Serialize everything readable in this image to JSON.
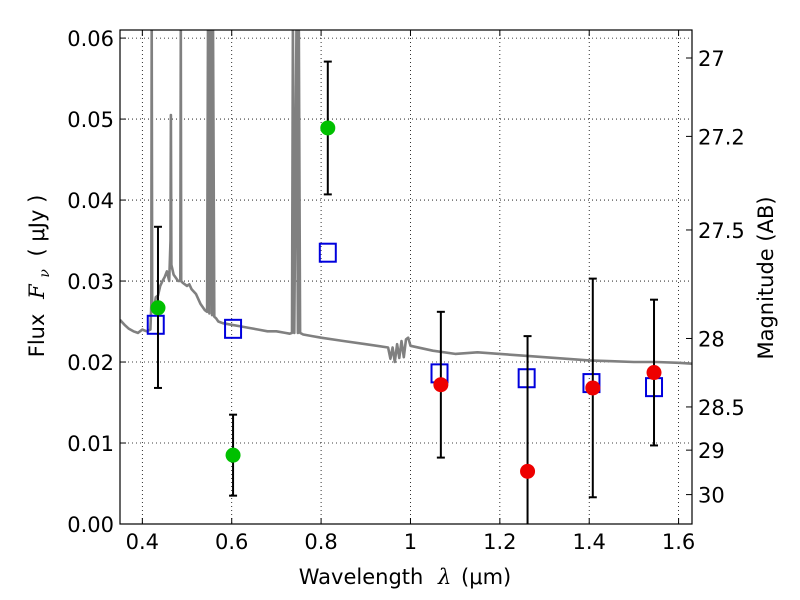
{
  "chart_data": {
    "type": "scatter",
    "xlabel": {
      "prefix": "Wavelength",
      "symbol": "λ",
      "unit": "(μm)"
    },
    "ylabel": {
      "prefix": "Flux",
      "symbol": "F",
      "subscript": "ν",
      "unit": "( μJy )"
    },
    "y2label": "Magnitude (AB)",
    "xlim": [
      0.35,
      1.63
    ],
    "ylim": [
      0.0,
      0.061
    ],
    "grid": true,
    "x_ticks": [
      {
        "value": 0.4,
        "label": "0.4"
      },
      {
        "value": 0.6,
        "label": "0.6"
      },
      {
        "value": 0.8,
        "label": "0.8"
      },
      {
        "value": 1.0,
        "label": "1"
      },
      {
        "value": 1.2,
        "label": "1.2"
      },
      {
        "value": 1.4,
        "label": "1.4"
      },
      {
        "value": 1.6,
        "label": "1.6"
      }
    ],
    "y_ticks": [
      {
        "value": 0.0,
        "label": "0.00"
      },
      {
        "value": 0.01,
        "label": "0.01"
      },
      {
        "value": 0.02,
        "label": "0.02"
      },
      {
        "value": 0.03,
        "label": "0.03"
      },
      {
        "value": 0.04,
        "label": "0.04"
      },
      {
        "value": 0.05,
        "label": "0.05"
      },
      {
        "value": 0.06,
        "label": "0.06"
      }
    ],
    "y2_ticks": [
      {
        "mag": 27,
        "label": "27"
      },
      {
        "mag": 27.2,
        "label": "27.2"
      },
      {
        "mag": 27.5,
        "label": "27.5"
      },
      {
        "mag": 28,
        "label": "28"
      },
      {
        "mag": 28.5,
        "label": "28.5"
      },
      {
        "mag": 29,
        "label": "29"
      },
      {
        "mag": 30,
        "label": "30"
      }
    ],
    "colors": {
      "model": "#808080",
      "green": "#00c000",
      "red": "#ee0000",
      "square": "#0000dd",
      "errorbar": "#000000"
    },
    "model_spectrum": {
      "name": "",
      "points": [
        [
          0.35,
          0.0252
        ],
        [
          0.36,
          0.0246
        ],
        [
          0.37,
          0.0241
        ],
        [
          0.38,
          0.0238
        ],
        [
          0.39,
          0.0236
        ],
        [
          0.4,
          0.024
        ],
        [
          0.41,
          0.0238
        ],
        [
          0.418,
          0.024
        ],
        [
          0.42,
          0.027
        ],
        [
          0.421,
          0.062
        ],
        [
          0.422,
          0.027
        ],
        [
          0.425,
          0.0262
        ],
        [
          0.43,
          0.028
        ],
        [
          0.435,
          0.0282
        ],
        [
          0.44,
          0.0294
        ],
        [
          0.445,
          0.03
        ],
        [
          0.45,
          0.0305
        ],
        [
          0.455,
          0.0312
        ],
        [
          0.46,
          0.03
        ],
        [
          0.463,
          0.035
        ],
        [
          0.464,
          0.0505
        ],
        [
          0.465,
          0.032
        ],
        [
          0.47,
          0.0308
        ],
        [
          0.48,
          0.03
        ],
        [
          0.485,
          0.03
        ],
        [
          0.486,
          0.062
        ],
        [
          0.487,
          0.03
        ],
        [
          0.49,
          0.0298
        ],
        [
          0.495,
          0.0296
        ],
        [
          0.5,
          0.0294
        ],
        [
          0.505,
          0.0296
        ],
        [
          0.51,
          0.029
        ],
        [
          0.52,
          0.0284
        ],
        [
          0.53,
          0.0272
        ],
        [
          0.54,
          0.0264
        ],
        [
          0.545,
          0.0262
        ],
        [
          0.547,
          0.062
        ],
        [
          0.55,
          0.026
        ],
        [
          0.553,
          0.062
        ],
        [
          0.556,
          0.0258
        ],
        [
          0.558,
          0.062
        ],
        [
          0.561,
          0.0256
        ],
        [
          0.565,
          0.0254
        ],
        [
          0.57,
          0.025
        ],
        [
          0.58,
          0.0248
        ],
        [
          0.6,
          0.0246
        ],
        [
          0.62,
          0.0244
        ],
        [
          0.64,
          0.0242
        ],
        [
          0.66,
          0.024
        ],
        [
          0.68,
          0.0238
        ],
        [
          0.7,
          0.0238
        ],
        [
          0.72,
          0.0236
        ],
        [
          0.73,
          0.0235
        ],
        [
          0.735,
          0.0236
        ],
        [
          0.737,
          0.062
        ],
        [
          0.74,
          0.0236
        ],
        [
          0.745,
          0.062
        ],
        [
          0.748,
          0.0236
        ],
        [
          0.75,
          0.062
        ],
        [
          0.753,
          0.0236
        ],
        [
          0.76,
          0.0234
        ],
        [
          0.78,
          0.0232
        ],
        [
          0.8,
          0.023
        ],
        [
          0.85,
          0.0226
        ],
        [
          0.9,
          0.0222
        ],
        [
          0.95,
          0.0218
        ],
        [
          0.955,
          0.0204
        ],
        [
          0.96,
          0.0218
        ],
        [
          0.965,
          0.02
        ],
        [
          0.97,
          0.0222
        ],
        [
          0.975,
          0.0205
        ],
        [
          0.98,
          0.0226
        ],
        [
          0.985,
          0.0206
        ],
        [
          0.99,
          0.0228
        ],
        [
          0.995,
          0.023
        ],
        [
          1.0,
          0.022
        ],
        [
          1.05,
          0.0214
        ],
        [
          1.1,
          0.021
        ],
        [
          1.15,
          0.0212
        ],
        [
          1.2,
          0.021
        ],
        [
          1.25,
          0.0208
        ],
        [
          1.3,
          0.0206
        ],
        [
          1.35,
          0.0204
        ],
        [
          1.4,
          0.0202
        ],
        [
          1.45,
          0.0201
        ],
        [
          1.5,
          0.02
        ],
        [
          1.55,
          0.02
        ],
        [
          1.6,
          0.0199
        ],
        [
          1.63,
          0.0198
        ]
      ]
    },
    "green_points": {
      "name": "",
      "points": [
        {
          "x": 0.435,
          "y": 0.0267,
          "err_low": 0.0168,
          "err_high": 0.0367
        },
        {
          "x": 0.603,
          "y": 0.0085,
          "err_low": 0.0035,
          "err_high": 0.0135
        },
        {
          "x": 0.815,
          "y": 0.0489,
          "err_low": 0.0407,
          "err_high": 0.0571
        }
      ]
    },
    "red_points": {
      "name": "",
      "points": [
        {
          "x": 1.068,
          "y": 0.0172,
          "err_low": 0.0082,
          "err_high": 0.0262
        },
        {
          "x": 1.262,
          "y": 0.0065,
          "err_low": -0.001,
          "err_high": 0.0232
        },
        {
          "x": 1.408,
          "y": 0.0168,
          "err_low": 0.0033,
          "err_high": 0.0303
        },
        {
          "x": 1.545,
          "y": 0.0187,
          "err_low": 0.0097,
          "err_high": 0.0277
        }
      ]
    },
    "model_squares": {
      "name": "",
      "points": [
        {
          "x": 0.43,
          "y": 0.0246
        },
        {
          "x": 0.603,
          "y": 0.0241
        },
        {
          "x": 0.815,
          "y": 0.0335
        },
        {
          "x": 1.065,
          "y": 0.0186
        },
        {
          "x": 1.26,
          "y": 0.018
        },
        {
          "x": 1.405,
          "y": 0.0174
        },
        {
          "x": 1.545,
          "y": 0.0169
        }
      ]
    }
  }
}
